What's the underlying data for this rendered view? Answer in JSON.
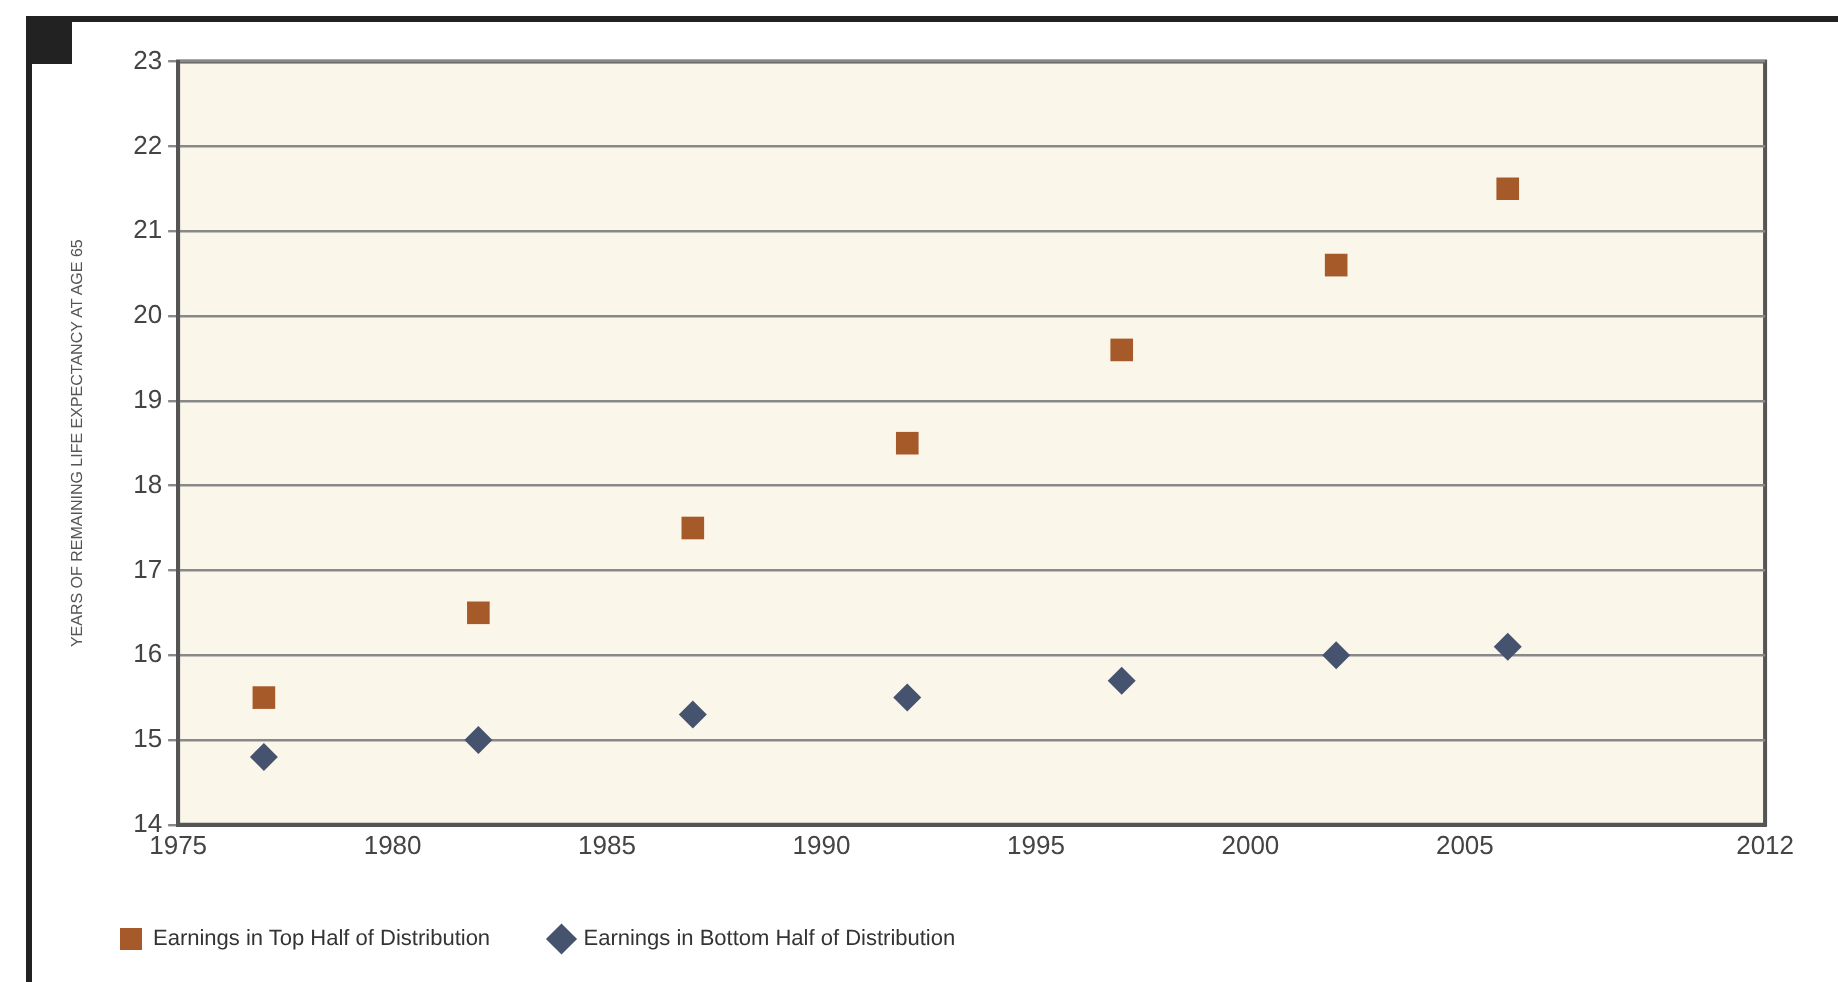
{
  "chart_data": {
    "type": "scatter",
    "ylabel": "YEARS OF REMAINING LIFE EXPECTANCY AT AGE 65",
    "xlim": [
      1975,
      2012
    ],
    "xticks": [
      1975,
      1980,
      1985,
      1990,
      1995,
      2000,
      2005,
      2012
    ],
    "ylim": [
      14,
      23
    ],
    "yticks": [
      14,
      15,
      16,
      17,
      18,
      19,
      20,
      21,
      22,
      23
    ],
    "grid": "y",
    "legend": "bottom",
    "series": [
      {
        "name": "Earnings in Top Half of Distribution",
        "color": "#a65a2a",
        "marker": "square",
        "x": [
          1977,
          1982,
          1987,
          1992,
          1997,
          2002,
          2006
        ],
        "values": [
          15.5,
          16.5,
          17.5,
          18.5,
          19.6,
          20.6,
          21.5
        ]
      },
      {
        "name": "Earnings in Bottom Half of Distribution",
        "color": "#46536e",
        "marker": "diamond",
        "x": [
          1977,
          1982,
          1987,
          1992,
          1997,
          2002,
          2006
        ],
        "values": [
          14.8,
          15.0,
          15.3,
          15.5,
          15.7,
          16.0,
          16.1
        ]
      }
    ]
  }
}
